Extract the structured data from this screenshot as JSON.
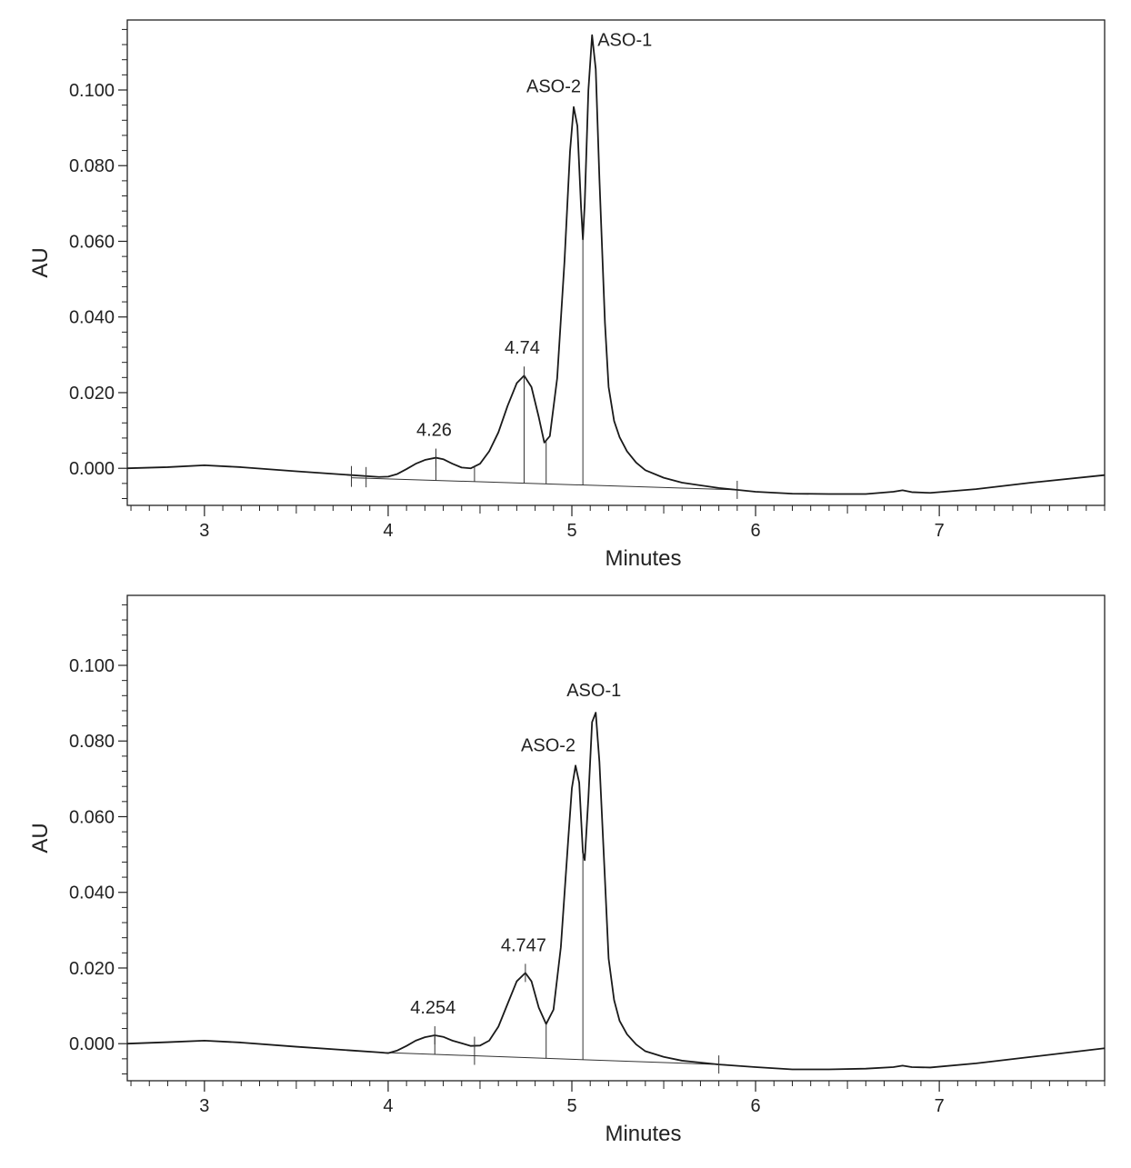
{
  "chart_data": [
    {
      "type": "line",
      "xlabel": "Minutes",
      "ylabel": "AU",
      "xlim": [
        2.58,
        7.9
      ],
      "ylim": [
        -0.0098,
        0.1185
      ],
      "xticks": [
        3,
        4,
        5,
        6,
        7
      ],
      "xtick_labels": [
        "3",
        "4",
        "5",
        "6",
        "7"
      ],
      "yticks": [
        0.0,
        0.02,
        0.04,
        0.06,
        0.08,
        0.1
      ],
      "ytick_labels": [
        "0.000",
        "0.020",
        "0.040",
        "0.060",
        "0.080",
        "0.100"
      ],
      "grid": false,
      "series": [
        {
          "x": [
            2.58,
            2.8,
            3.0,
            3.2,
            3.5,
            3.8,
            3.95,
            4.0,
            4.05,
            4.1,
            4.15,
            4.2,
            4.26,
            4.3,
            4.35,
            4.4,
            4.45,
            4.5,
            4.55,
            4.6,
            4.65,
            4.7,
            4.74,
            4.78,
            4.82,
            4.85,
            4.88,
            4.92,
            4.96,
            4.99,
            5.01,
            5.03,
            5.05,
            5.06,
            5.07,
            5.09,
            5.11,
            5.13,
            5.15,
            5.18,
            5.2,
            5.23,
            5.26,
            5.3,
            5.35,
            5.4,
            5.5,
            5.6,
            5.8,
            6.0,
            6.2,
            6.4,
            6.6,
            6.75,
            6.8,
            6.85,
            6.95,
            7.2,
            7.5,
            7.9
          ],
          "y": [
            0.0,
            0.0003,
            0.0008,
            0.0003,
            -0.0008,
            -0.0018,
            -0.0023,
            -0.0022,
            -0.0015,
            -0.0002,
            0.0012,
            0.0022,
            0.0028,
            0.0024,
            0.0012,
            0.0002,
            0.0,
            0.0012,
            0.0045,
            0.0095,
            0.0165,
            0.0225,
            0.0245,
            0.0215,
            0.0135,
            0.0068,
            0.0085,
            0.0238,
            0.0548,
            0.0838,
            0.0955,
            0.0905,
            0.069,
            0.0605,
            0.07,
            0.1,
            0.1145,
            0.1055,
            0.0765,
            0.0385,
            0.0215,
            0.0125,
            0.0082,
            0.0045,
            0.0015,
            -0.0005,
            -0.0025,
            -0.0038,
            -0.0052,
            -0.0062,
            -0.0067,
            -0.0068,
            -0.0068,
            -0.0062,
            -0.0058,
            -0.0063,
            -0.0065,
            -0.0055,
            -0.0038,
            -0.0018
          ]
        }
      ],
      "annotations": [
        {
          "text": "ASO-1",
          "x": 5.11,
          "y": 0.1145
        },
        {
          "text": "ASO-2",
          "x": 5.01,
          "y": 0.0955
        },
        {
          "text": "4.74",
          "x": 4.74,
          "y": 0.0245
        },
        {
          "text": "4.26",
          "x": 4.26,
          "y": 0.0028
        }
      ],
      "peak_markers": [
        3.8,
        3.88,
        4.26,
        4.47,
        4.74,
        4.86,
        5.06,
        5.9
      ],
      "baseline_segment": {
        "x": [
          3.8,
          5.9
        ],
        "y": [
          -0.0025,
          -0.0057
        ]
      }
    },
    {
      "type": "line",
      "xlabel": "Minutes",
      "ylabel": "AU",
      "xlim": [
        2.58,
        7.9
      ],
      "ylim": [
        -0.0098,
        0.1185
      ],
      "xticks": [
        3,
        4,
        5,
        6,
        7
      ],
      "xtick_labels": [
        "3",
        "4",
        "5",
        "6",
        "7"
      ],
      "yticks": [
        0.0,
        0.02,
        0.04,
        0.06,
        0.08,
        0.1
      ],
      "ytick_labels": [
        "0.000",
        "0.020",
        "0.040",
        "0.060",
        "0.080",
        "0.100"
      ],
      "grid": false,
      "series": [
        {
          "x": [
            2.58,
            2.8,
            3.0,
            3.2,
            3.5,
            3.8,
            3.95,
            4.0,
            4.05,
            4.1,
            4.15,
            4.2,
            4.254,
            4.3,
            4.35,
            4.4,
            4.45,
            4.5,
            4.55,
            4.6,
            4.65,
            4.7,
            4.747,
            4.78,
            4.82,
            4.86,
            4.9,
            4.94,
            4.98,
            5.0,
            5.02,
            5.04,
            5.06,
            5.07,
            5.09,
            5.11,
            5.13,
            5.15,
            5.18,
            5.2,
            5.23,
            5.26,
            5.3,
            5.35,
            5.4,
            5.5,
            5.6,
            5.8,
            6.0,
            6.2,
            6.4,
            6.6,
            6.75,
            6.8,
            6.85,
            6.95,
            7.2,
            7.5,
            7.9
          ],
          "y": [
            0.0,
            0.0004,
            0.0008,
            0.0003,
            -0.0008,
            -0.0018,
            -0.0023,
            -0.0025,
            -0.0018,
            -0.0006,
            0.0008,
            0.0017,
            0.0022,
            0.0018,
            0.0008,
            0.0001,
            -0.0006,
            -0.0005,
            0.0008,
            0.0045,
            0.0105,
            0.0165,
            0.0187,
            0.0165,
            0.0095,
            0.0052,
            0.009,
            0.0255,
            0.0538,
            0.0675,
            0.0735,
            0.069,
            0.0505,
            0.0485,
            0.065,
            0.085,
            0.0875,
            0.0745,
            0.0435,
            0.0225,
            0.0115,
            0.006,
            0.0025,
            -0.0002,
            -0.002,
            -0.0035,
            -0.0045,
            -0.0055,
            -0.0062,
            -0.0068,
            -0.0068,
            -0.0066,
            -0.0062,
            -0.0058,
            -0.0062,
            -0.0063,
            -0.0052,
            -0.0035,
            -0.0012
          ]
        }
      ],
      "annotations": [
        {
          "text": "ASO-1",
          "x": 5.11,
          "y": 0.0875
        },
        {
          "text": "ASO-2",
          "x": 5.02,
          "y": 0.0735
        },
        {
          "text": "4.747",
          "x": 4.747,
          "y": 0.0187
        },
        {
          "text": "4.254",
          "x": 4.254,
          "y": 0.0022
        }
      ],
      "peak_markers": [
        4.254,
        4.47,
        4.86,
        5.06,
        5.8
      ],
      "baseline_segment": {
        "x": [
          3.95,
          5.85
        ],
        "y": [
          -0.0023,
          -0.0056
        ]
      }
    }
  ]
}
